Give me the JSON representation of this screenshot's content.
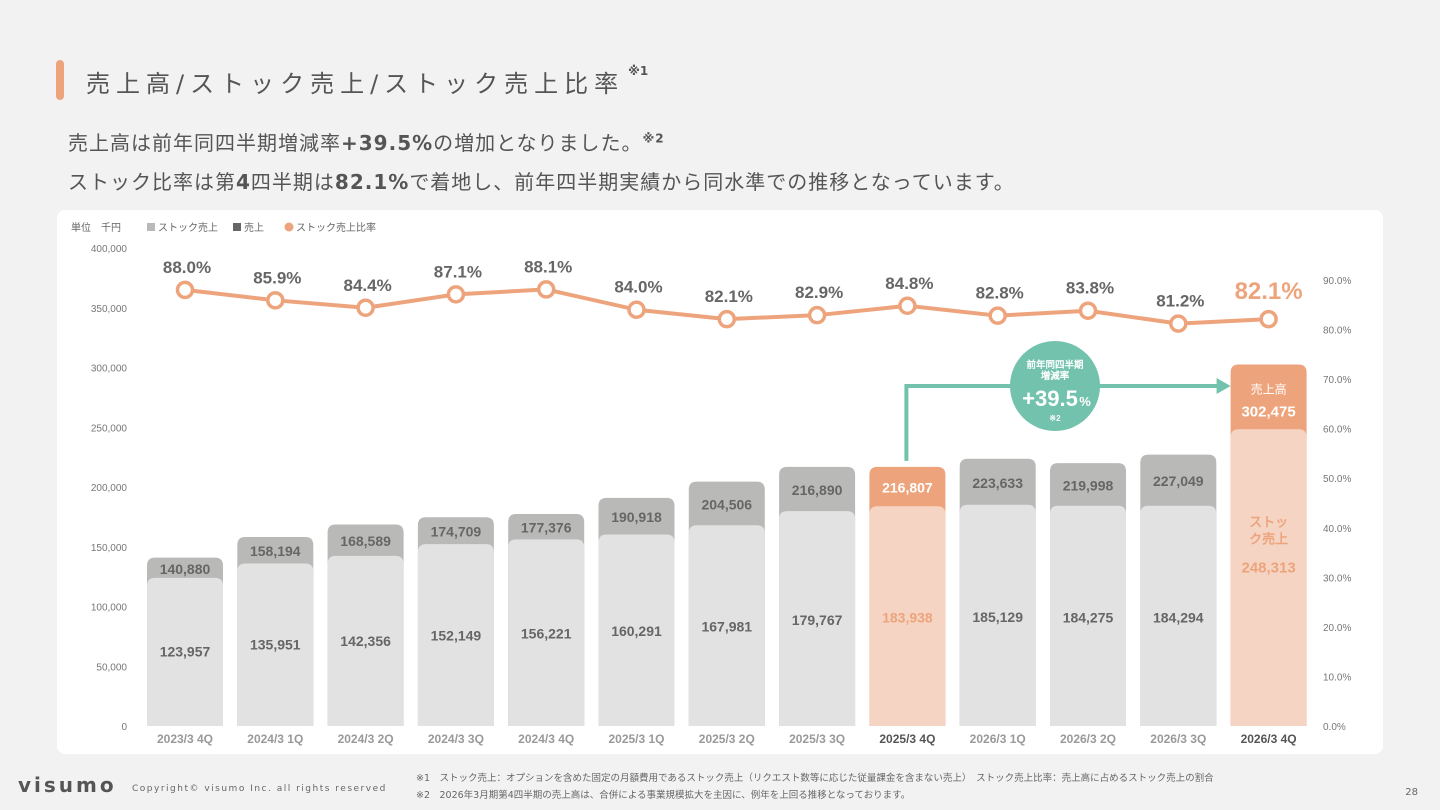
{
  "page": {
    "title": "売上高/ストック売上/ストック売上比率",
    "title_note": "※1",
    "lead1_pre": "売上高は前年同四半期増減率",
    "lead1_bold": "+39.5%",
    "lead1_post": "の増加となりました。",
    "lead1_note": "※2",
    "lead2_pre": "ストック比率は第",
    "lead2_bold1": "4",
    "lead2_mid": "四半期は",
    "lead2_bold2": "82.1%",
    "lead2_post": "で着地し、前年四半期実績から同水準での推移となっています。",
    "note1": "※1　ストック売上：オプションを含めた固定の月額費用であるストック売上（リクエスト数等に応じた従量課金を含まない売上）　ストック売上比率：売上高に占めるストック売上の割合",
    "note2": "※2　2026年3月期第4四半期の売上高は、合併による事業規模拡大を主因に、例年を上回る推移となっております。",
    "logo": "visumo",
    "copyright": "Copyright© visumo Inc. all rights reserved",
    "page_number": "28"
  },
  "colors": {
    "stock_bar": "#e2e2e2",
    "total_bar": "#b9b9b7",
    "highlight_stock": "#f5d4c3",
    "highlight_total": "#eda47c",
    "ratio_line": "#eda47c",
    "arrow": "#72c2ad"
  },
  "chart_data": {
    "type": "bar",
    "unit_label": "単位　千円",
    "legend": [
      "ストック売上",
      "売上",
      "ストック売上比率"
    ],
    "categories": [
      "2023/3 4Q",
      "2024/3 1Q",
      "2024/3 2Q",
      "2024/3 3Q",
      "2024/3 4Q",
      "2025/3 1Q",
      "2025/3 2Q",
      "2025/3 3Q",
      "2025/3 4Q",
      "2026/3 1Q",
      "2026/3 2Q",
      "2026/3 3Q",
      "2026/3 4Q"
    ],
    "highlight": [
      "2025/3 4Q",
      "2026/3 4Q"
    ],
    "series": [
      {
        "name": "売上",
        "values": [
          140880,
          158194,
          168589,
          174709,
          177376,
          190918,
          204506,
          216890,
          216807,
          223633,
          219998,
          227049,
          302475
        ]
      },
      {
        "name": "ストック売上",
        "values": [
          123957,
          135951,
          142356,
          152149,
          156221,
          160291,
          167981,
          179767,
          183938,
          185129,
          184275,
          184294,
          248313
        ]
      },
      {
        "name": "ストック売上比率",
        "values": [
          88.0,
          85.9,
          84.4,
          87.1,
          88.1,
          84.0,
          82.1,
          82.9,
          84.8,
          82.8,
          83.8,
          81.2,
          82.1
        ]
      }
    ],
    "value_labels_total": [
      "140,880",
      "158,194",
      "168,589",
      "174,709",
      "177,376",
      "190,918",
      "204,506",
      "216,890",
      "216,807",
      "223,633",
      "219,998",
      "227,049",
      "302,475"
    ],
    "value_labels_stock": [
      "123,957",
      "135,951",
      "142,356",
      "152,149",
      "156,221",
      "160,291",
      "167,981",
      "179,767",
      "183,938",
      "185,129",
      "184,275",
      "184,294",
      "248,313"
    ],
    "value_labels_ratio": [
      "88.0%",
      "85.9%",
      "84.4%",
      "87.1%",
      "88.1%",
      "84.0%",
      "82.1%",
      "82.9%",
      "84.8%",
      "82.8%",
      "83.8%",
      "81.2%",
      "82.1%"
    ],
    "ylim": [
      0,
      400000
    ],
    "y_ticks": [
      "0",
      "50,000",
      "100,000",
      "150,000",
      "200,000",
      "250,000",
      "300,000",
      "350,000",
      "400,000"
    ],
    "y2lim": [
      0,
      90
    ],
    "y2_ticks": [
      "0.0%",
      "10.0%",
      "20.0%",
      "30.0%",
      "40.0%",
      "50.0%",
      "60.0%",
      "70.0%",
      "80.0%",
      "90.0%"
    ],
    "last_bar_labels": {
      "total": "売上高",
      "stock": "ストック売上"
    },
    "growth_badge": {
      "line1": "前年同四半期",
      "line2": "増減率",
      "value": "+39.5",
      "unit": "%",
      "note": "※2"
    }
  }
}
